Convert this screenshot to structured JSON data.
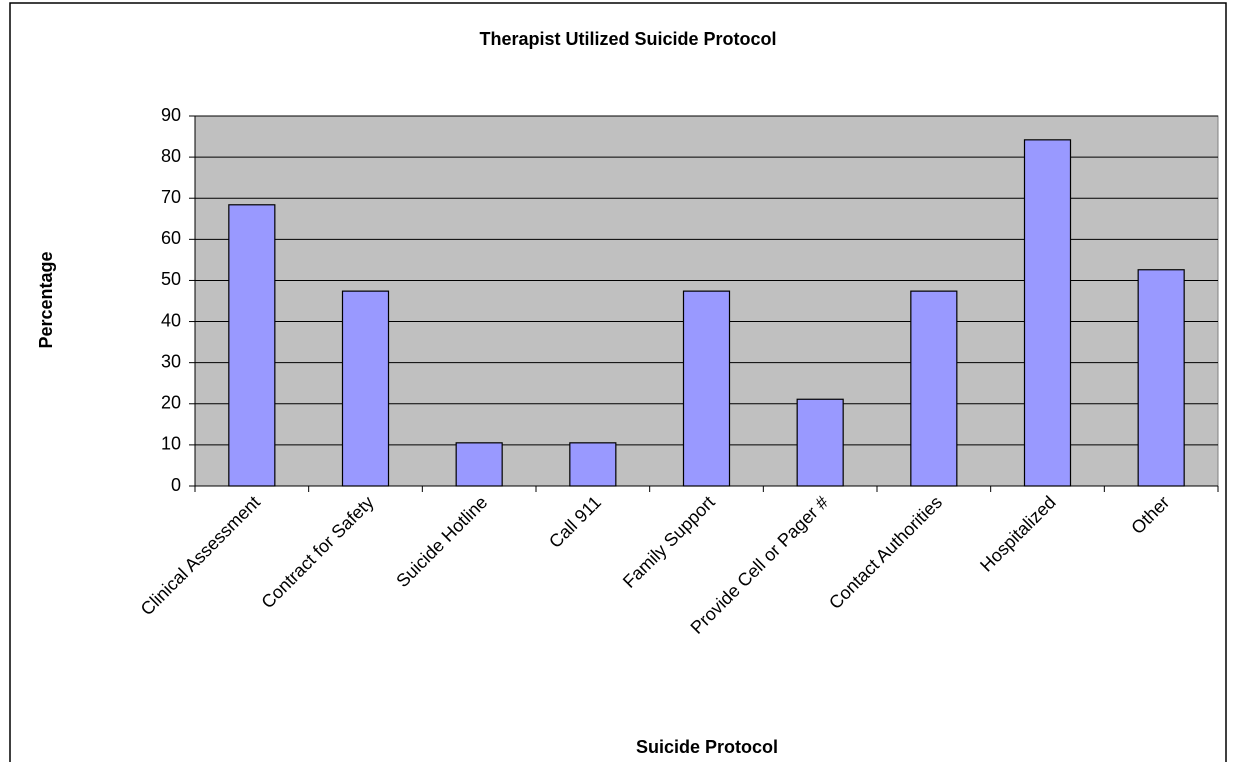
{
  "chart_data": {
    "type": "bar",
    "title": "Therapist Utilized Suicide Protocol",
    "x_label": "Suicide Protocol",
    "y_label": "Percentage",
    "categories": [
      "Clinical Assessment",
      "Contract for Safety",
      "Suicide Hotline",
      "Call 911",
      "Family Support",
      "Provide Cell or Pager #",
      "Contact Authorities",
      "Hospitalized",
      "Other"
    ],
    "values": [
      68.4,
      47.4,
      10.5,
      10.5,
      47.4,
      21.1,
      47.4,
      84.2,
      52.6
    ],
    "color": "#9999ff",
    "ylim": [
      0,
      90
    ],
    "yticks": [
      0,
      10,
      20,
      30,
      40,
      50,
      60,
      70,
      80,
      90
    ],
    "grid": true
  }
}
